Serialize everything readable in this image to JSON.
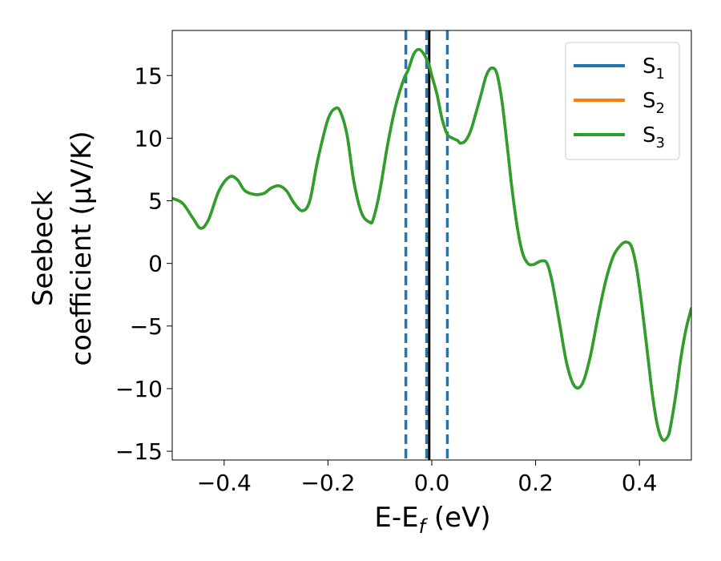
{
  "chart_data": {
    "type": "line",
    "xlabel": {
      "main": "E-E",
      "sub": "f",
      "unit": " (eV)"
    },
    "ylabel": {
      "line1": "Seebeck",
      "line2": "coefficient  (μV/K)"
    },
    "xlim": [
      -0.5,
      0.5
    ],
    "ylim": [
      -15.7,
      18.6
    ],
    "xticks": [
      {
        "value": -0.4,
        "label": "−0.4"
      },
      {
        "value": -0.2,
        "label": "−0.2"
      },
      {
        "value": 0.0,
        "label": "0.0"
      },
      {
        "value": 0.2,
        "label": "0.2"
      },
      {
        "value": 0.4,
        "label": "0.4"
      }
    ],
    "yticks": [
      {
        "value": -15,
        "label": "−15"
      },
      {
        "value": -10,
        "label": "−10"
      },
      {
        "value": -5,
        "label": "−5"
      },
      {
        "value": 0,
        "label": "0"
      },
      {
        "value": 5,
        "label": "5"
      },
      {
        "value": 10,
        "label": "10"
      },
      {
        "value": 15,
        "label": "15"
      }
    ],
    "grid": false,
    "legend_position": "top-right",
    "x": [
      -0.5,
      -0.48,
      -0.46,
      -0.445,
      -0.43,
      -0.41,
      -0.39,
      -0.375,
      -0.36,
      -0.34,
      -0.323,
      -0.31,
      -0.295,
      -0.28,
      -0.265,
      -0.249,
      -0.235,
      -0.22,
      -0.2,
      -0.185,
      -0.175,
      -0.163,
      -0.15,
      -0.135,
      -0.12,
      -0.113,
      -0.1,
      -0.085,
      -0.07,
      -0.055,
      -0.045,
      -0.035,
      -0.025,
      -0.015,
      -0.005,
      0.0,
      0.01,
      0.02,
      0.03,
      0.04,
      0.05,
      0.055,
      0.065,
      0.075,
      0.085,
      0.095,
      0.105,
      0.115,
      0.125,
      0.135,
      0.145,
      0.155,
      0.165,
      0.175,
      0.185,
      0.195,
      0.205,
      0.213,
      0.222,
      0.232,
      0.245,
      0.26,
      0.275,
      0.29,
      0.305,
      0.32,
      0.335,
      0.35,
      0.365,
      0.375,
      0.385,
      0.395,
      0.405,
      0.415,
      0.425,
      0.435,
      0.445,
      0.455,
      0.46,
      0.47,
      0.48,
      0.49,
      0.5
    ],
    "series": [
      {
        "name": "S",
        "sub": "1",
        "color": "#1f77b4",
        "y": [
          5.2,
          4.8,
          3.6,
          2.8,
          3.5,
          5.8,
          6.9,
          6.7,
          5.8,
          5.5,
          5.6,
          6.0,
          6.2,
          5.8,
          4.8,
          4.2,
          5.0,
          8.2,
          11.5,
          12.4,
          12.0,
          10.2,
          6.5,
          4.0,
          3.3,
          3.5,
          5.8,
          9.5,
          12.5,
          14.6,
          15.5,
          16.7,
          17.1,
          16.7,
          15.8,
          15.0,
          13.5,
          11.5,
          10.3,
          10.0,
          9.8,
          9.6,
          9.8,
          10.6,
          12.0,
          13.5,
          15.0,
          15.6,
          15.2,
          13.0,
          9.5,
          5.8,
          2.8,
          0.8,
          0.0,
          -0.1,
          0.1,
          0.2,
          0.0,
          -1.5,
          -4.5,
          -8.0,
          -9.8,
          -9.6,
          -7.5,
          -4.3,
          -1.4,
          0.6,
          1.5,
          1.7,
          1.3,
          -0.5,
          -3.5,
          -7.0,
          -10.5,
          -13.0,
          -14.1,
          -13.8,
          -13.0,
          -10.5,
          -7.5,
          -5.2,
          -3.6
        ]
      },
      {
        "name": "S",
        "sub": "2",
        "color": "#ff7f0e",
        "y": [
          5.2,
          4.8,
          3.6,
          2.8,
          3.5,
          5.8,
          6.9,
          6.7,
          5.8,
          5.5,
          5.6,
          6.0,
          6.2,
          5.8,
          4.8,
          4.2,
          5.0,
          8.2,
          11.5,
          12.4,
          12.0,
          10.2,
          6.5,
          4.0,
          3.3,
          3.5,
          5.8,
          9.5,
          12.5,
          14.6,
          15.5,
          16.7,
          17.1,
          16.7,
          15.8,
          15.0,
          13.5,
          11.5,
          10.3,
          10.0,
          9.8,
          9.6,
          9.8,
          10.6,
          12.0,
          13.5,
          15.0,
          15.6,
          15.2,
          13.0,
          9.5,
          5.8,
          2.8,
          0.8,
          0.0,
          -0.1,
          0.1,
          0.2,
          0.0,
          -1.5,
          -4.5,
          -8.0,
          -9.8,
          -9.6,
          -7.5,
          -4.3,
          -1.4,
          0.6,
          1.5,
          1.7,
          1.3,
          -0.5,
          -3.5,
          -7.0,
          -10.5,
          -13.0,
          -14.1,
          -13.8,
          -13.0,
          -10.5,
          -7.5,
          -5.2,
          -3.6
        ]
      },
      {
        "name": "S",
        "sub": "3",
        "color": "#2ca02c",
        "y": [
          5.2,
          4.8,
          3.6,
          2.8,
          3.5,
          5.8,
          6.9,
          6.7,
          5.8,
          5.5,
          5.6,
          6.0,
          6.2,
          5.8,
          4.8,
          4.2,
          5.0,
          8.2,
          11.5,
          12.4,
          12.0,
          10.2,
          6.5,
          4.0,
          3.3,
          3.5,
          5.8,
          9.5,
          12.5,
          14.6,
          15.5,
          16.7,
          17.1,
          16.7,
          15.8,
          15.0,
          13.5,
          11.5,
          10.3,
          10.0,
          9.8,
          9.6,
          9.8,
          10.6,
          12.0,
          13.5,
          15.0,
          15.6,
          15.2,
          13.0,
          9.5,
          5.8,
          2.8,
          0.8,
          0.0,
          -0.1,
          0.1,
          0.2,
          0.0,
          -1.5,
          -4.5,
          -8.0,
          -9.8,
          -9.6,
          -7.5,
          -4.3,
          -1.4,
          0.6,
          1.5,
          1.7,
          1.3,
          -0.5,
          -3.5,
          -7.0,
          -10.5,
          -13.0,
          -14.1,
          -13.8,
          -13.0,
          -10.5,
          -7.5,
          -5.2,
          -3.6
        ]
      }
    ],
    "vlines": [
      {
        "x": -0.05,
        "style": "dashed",
        "color": "#1f77b4"
      },
      {
        "x": -0.01,
        "style": "dashed",
        "color": "#1f77b4"
      },
      {
        "x": 0.03,
        "style": "dashed",
        "color": "#1f77b4"
      },
      {
        "x": -0.005,
        "style": "solid",
        "color": "#000000"
      }
    ]
  }
}
